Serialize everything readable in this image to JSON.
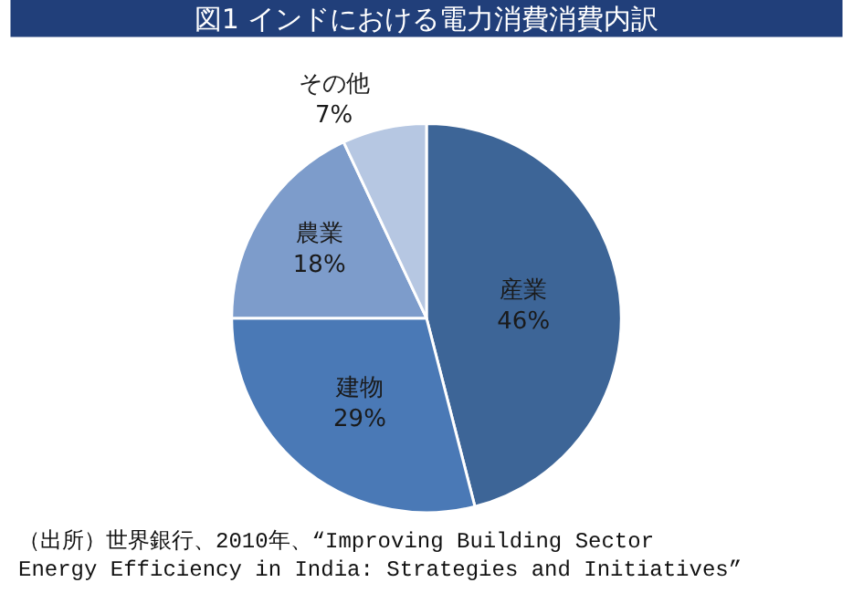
{
  "chart_data": {
    "type": "pie",
    "title": "図1 インドにおける電力消費消費内訳",
    "categories": [
      "産業",
      "建物",
      "農業",
      "その他"
    ],
    "values": [
      46,
      29,
      18,
      7
    ],
    "value_labels": [
      "46%",
      "29%",
      "18%",
      "7%"
    ],
    "colors": [
      "#3d6597",
      "#4a79b6",
      "#7d9ccb",
      "#b6c7e2"
    ],
    "legend": false,
    "annotations": [
      "（出所）世界銀行、2010年、“Improving Building Sector\nEnergy Efficiency in India: Strategies and Initiatives”"
    ]
  }
}
